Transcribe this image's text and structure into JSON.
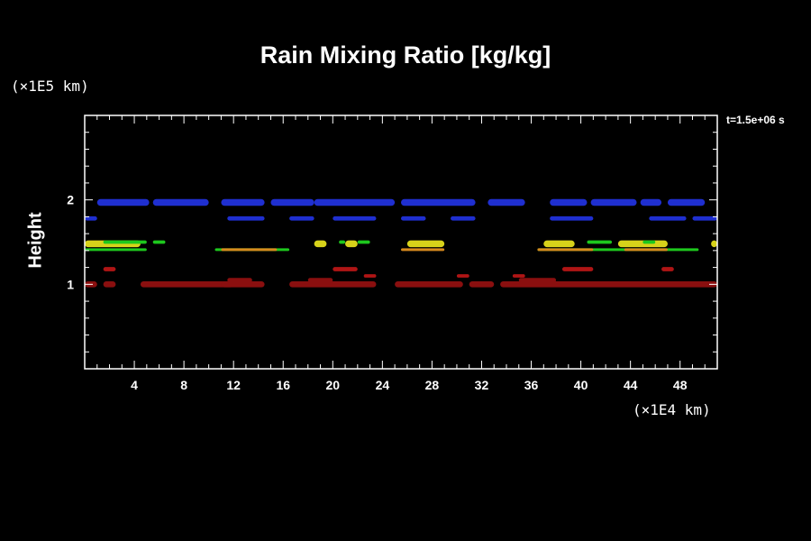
{
  "chart_data": {
    "type": "heatmap",
    "title": "Rain Mixing Ratio [kg/kg]",
    "ylabel": "Height",
    "y_unit": "(×1E5 km)",
    "x_unit": "(×1E4 km)",
    "timestamp": "t=1.5e+06 s",
    "xlim": [
      0,
      51
    ],
    "ylim": [
      0,
      3
    ],
    "x_ticks": [
      "4",
      "8",
      "12",
      "16",
      "20",
      "24",
      "28",
      "32",
      "36",
      "40",
      "44",
      "48"
    ],
    "y_ticks": [
      "1",
      "2"
    ],
    "colors": {
      "blue": "#1f2fd0",
      "green": "#1ec81e",
      "yellow": "#d7d21a",
      "orange": "#d78a1e",
      "dark_red": "#8a0f0f",
      "red": "#b01515"
    },
    "bands": [
      {
        "color": "blue",
        "y": 1.97,
        "thickness": 0.08,
        "segments": [
          [
            1.0,
            5.2
          ],
          [
            5.5,
            10.0
          ],
          [
            11.0,
            14.5
          ],
          [
            15.0,
            18.5
          ],
          [
            18.5,
            25.0
          ],
          [
            25.5,
            31.5
          ],
          [
            32.5,
            35.5
          ],
          [
            37.5,
            40.5
          ],
          [
            40.8,
            44.5
          ],
          [
            44.8,
            46.5
          ],
          [
            47.0,
            50.0
          ]
        ]
      },
      {
        "color": "blue",
        "y": 1.78,
        "thickness": 0.05,
        "segments": [
          [
            0.0,
            1.0
          ],
          [
            11.5,
            14.5
          ],
          [
            16.5,
            18.5
          ],
          [
            20.0,
            23.5
          ],
          [
            25.5,
            27.5
          ],
          [
            29.5,
            31.5
          ],
          [
            37.5,
            41.0
          ],
          [
            45.5,
            48.5
          ],
          [
            49.0,
            51.0
          ]
        ]
      },
      {
        "color": "green",
        "y": 1.41,
        "thickness": 0.03,
        "segments": [
          [
            0.0,
            5.0
          ],
          [
            10.5,
            16.5
          ],
          [
            36.5,
            49.5
          ]
        ]
      },
      {
        "color": "orange",
        "y": 1.41,
        "thickness": 0.03,
        "segments": [
          [
            11.0,
            15.5
          ],
          [
            25.5,
            29.0
          ],
          [
            36.5,
            41.0
          ],
          [
            43.5,
            47.0
          ]
        ]
      },
      {
        "color": "yellow",
        "y": 1.48,
        "thickness": 0.08,
        "segments": [
          [
            0.0,
            4.5
          ],
          [
            18.5,
            19.5
          ],
          [
            21.0,
            22.0
          ],
          [
            26.0,
            29.0
          ],
          [
            37.0,
            39.5
          ],
          [
            43.0,
            47.0
          ],
          [
            50.5,
            51.0
          ]
        ]
      },
      {
        "color": "green",
        "y": 1.5,
        "thickness": 0.04,
        "segments": [
          [
            1.5,
            5.0
          ],
          [
            5.5,
            6.5
          ],
          [
            20.5,
            21.0
          ],
          [
            22.0,
            23.0
          ],
          [
            40.5,
            42.5
          ],
          [
            45.0,
            46.0
          ]
        ]
      },
      {
        "color": "dark_red",
        "y": 1.0,
        "thickness": 0.07,
        "segments": [
          [
            0.0,
            1.0
          ],
          [
            1.5,
            2.5
          ],
          [
            4.5,
            12.0
          ],
          [
            11.0,
            14.5
          ],
          [
            16.5,
            23.5
          ],
          [
            25.0,
            30.5
          ],
          [
            31.0,
            33.0
          ],
          [
            33.5,
            51.0
          ]
        ]
      },
      {
        "color": "dark_red",
        "y": 1.05,
        "thickness": 0.05,
        "segments": [
          [
            11.5,
            13.5
          ],
          [
            18.0,
            20.0
          ],
          [
            35.0,
            38.0
          ]
        ]
      },
      {
        "color": "red",
        "y": 1.18,
        "thickness": 0.05,
        "segments": [
          [
            1.5,
            2.5
          ],
          [
            20.0,
            22.0
          ],
          [
            38.5,
            41.0
          ],
          [
            46.5,
            47.5
          ]
        ]
      },
      {
        "color": "red",
        "y": 1.1,
        "thickness": 0.04,
        "segments": [
          [
            22.5,
            23.5
          ],
          [
            30.0,
            31.0
          ],
          [
            34.5,
            35.5
          ]
        ]
      }
    ]
  }
}
